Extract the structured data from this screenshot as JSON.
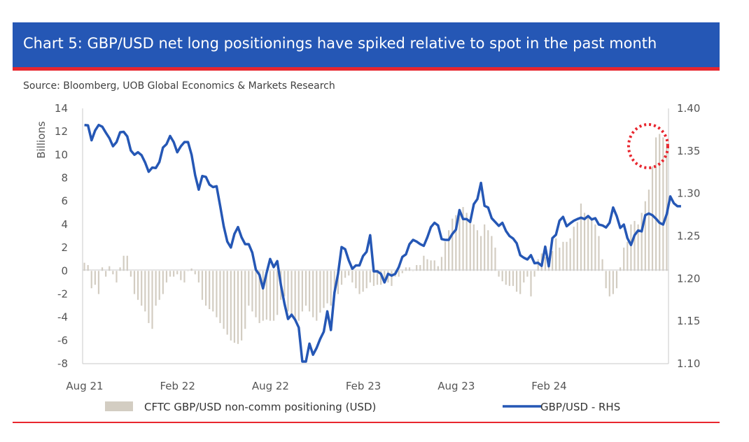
{
  "header": {
    "title": "Chart 5: GBP/USD net long positionings have spiked relative to spot in the past month",
    "source": "Source: Bloomberg, UOB Global Economics & Markets Research"
  },
  "colors": {
    "title_bar": "#2557b5",
    "accent_rule": "#e8262e",
    "bars": "#d3cdc2",
    "line": "#2557b5",
    "highlight_circle": "#e8262e"
  },
  "chart_data": {
    "type": "bar",
    "left_axis": {
      "label": "Billions",
      "ylim": [
        -8,
        14
      ],
      "ticks": [
        "14",
        "12",
        "10",
        "8",
        "6",
        "4",
        "2",
        "0",
        "-2",
        "-4",
        "-6",
        "-8"
      ]
    },
    "right_axis": {
      "ylim": [
        1.1,
        1.4
      ],
      "ticks": [
        "1.40",
        "1.35",
        "1.30",
        "1.25",
        "1.20",
        "1.15",
        "1.10"
      ]
    },
    "x_axis": {
      "ticks": [
        "Aug 21",
        "Feb 22",
        "Aug 22",
        "Feb 23",
        "Aug 23",
        "Feb 24"
      ],
      "tick_index": [
        0,
        26,
        52,
        78,
        104,
        130
      ]
    },
    "grid": false,
    "legend_position": "bottom",
    "series": [
      {
        "name": "CFTC GBP/USD non-comm positioning (USD)",
        "type": "bar",
        "axis": "left",
        "values": [
          0.7,
          0.5,
          -1.5,
          -1.2,
          -2.0,
          0.3,
          -0.5,
          0.4,
          -0.3,
          -1.0,
          0.3,
          1.3,
          1.3,
          -0.5,
          -2.0,
          -2.5,
          -3.0,
          -3.5,
          -4.5,
          -5.0,
          -3.0,
          -2.5,
          -2.0,
          -1.0,
          -0.5,
          -0.5,
          -0.3,
          -0.8,
          -1.0,
          0.0,
          0.2,
          -0.3,
          -1.0,
          -2.5,
          -3.0,
          -3.3,
          -3.5,
          -4.0,
          -4.5,
          -5.0,
          -5.5,
          -6.0,
          -6.2,
          -6.3,
          -6.0,
          -5.0,
          -3.0,
          -3.5,
          -4.0,
          -4.5,
          -4.3,
          -4.2,
          -4.3,
          -4.3,
          -3.8,
          -2.5,
          -2.2,
          -3.5,
          -4.0,
          -4.2,
          -4.3,
          -3.5,
          -3.0,
          -3.5,
          -4.0,
          -4.3,
          -3.6,
          -3.2,
          -2.8,
          -3.0,
          -2.3,
          -2.0,
          -1.2,
          -0.6,
          -0.4,
          -1.0,
          -1.5,
          -2.0,
          -1.8,
          -1.5,
          -1.0,
          -1.3,
          -1.2,
          -1.2,
          -0.9,
          -1.0,
          -1.3,
          -0.5,
          -0.5,
          -0.2,
          0.3,
          0.3,
          0.0,
          0.5,
          0.5,
          1.3,
          1.0,
          0.9,
          0.9,
          0.4,
          1.2,
          2.5,
          3.5,
          4.5,
          4.8,
          5.0,
          5.5,
          5.0,
          4.5,
          4.0,
          3.5,
          3.0,
          4.0,
          3.5,
          3.0,
          2.0,
          -0.5,
          -0.9,
          -1.2,
          -1.3,
          -1.3,
          -1.8,
          -2.0,
          -1.0,
          -0.5,
          -2.2,
          -0.5,
          1.0,
          1.5,
          1.2,
          1.0,
          1.7,
          2.8,
          2.0,
          2.5,
          2.5,
          2.8,
          3.8,
          4.2,
          5.8,
          5.0,
          4.8,
          4.5,
          4.0,
          3.0,
          1.0,
          -1.5,
          -2.2,
          -2.0,
          -1.5,
          0.3,
          2.0,
          2.5,
          4.0,
          4.3,
          4.0,
          5.0,
          6.0,
          7.0,
          9.0,
          11.5,
          11.8,
          11.5,
          11.0
        ]
      },
      {
        "name": "GBP/USD - RHS",
        "type": "line",
        "axis": "right",
        "values": [
          1.3805,
          1.38,
          1.3625,
          1.374,
          1.3805,
          1.3785,
          1.3715,
          1.365,
          1.3555,
          1.3605,
          1.372,
          1.3725,
          1.367,
          1.3505,
          1.3455,
          1.3485,
          1.345,
          1.3365,
          1.3255,
          1.3305,
          1.33,
          1.337,
          1.354,
          1.358,
          1.3675,
          1.3605,
          1.3485,
          1.3555,
          1.3605,
          1.3605,
          1.3455,
          1.3215,
          1.3045,
          1.3205,
          1.3195,
          1.3105,
          1.3075,
          1.3085,
          1.2855,
          1.2615,
          1.2435,
          1.2365,
          1.2525,
          1.2605,
          1.2485,
          1.2405,
          1.2405,
          1.2305,
          1.2105,
          1.2045,
          1.1885,
          1.2065,
          1.223,
          1.2135,
          1.2205,
          1.1925,
          1.1705,
          1.1525,
          1.1575,
          1.1515,
          1.1425,
          1.1025,
          1.1025,
          1.1235,
          1.1105,
          1.1185,
          1.129,
          1.1375,
          1.1615,
          1.1395,
          1.1835,
          1.2055,
          1.237,
          1.2345,
          1.2215,
          1.2115,
          1.2155,
          1.2155,
          1.2265,
          1.2315,
          1.251,
          1.2085,
          1.2085,
          1.2055,
          1.1955,
          1.2055,
          1.2035,
          1.2055,
          1.2135,
          1.2255,
          1.2285,
          1.2405,
          1.2455,
          1.2435,
          1.2405,
          1.2385,
          1.2485,
          1.2605,
          1.2655,
          1.2625,
          1.2465,
          1.2455,
          1.2455,
          1.2525,
          1.2575,
          1.2805,
          1.27,
          1.27,
          1.2665,
          1.2875,
          1.2935,
          1.3125,
          1.2855,
          1.2835,
          1.271,
          1.2665,
          1.262,
          1.2655,
          1.256,
          1.25,
          1.247,
          1.2415,
          1.2275,
          1.2245,
          1.2225,
          1.2275,
          1.218,
          1.2185,
          1.215,
          1.2375,
          1.2145,
          1.2475,
          1.2515,
          1.268,
          1.2725,
          1.2615,
          1.265,
          1.268,
          1.27,
          1.2715,
          1.27,
          1.2735,
          1.2695,
          1.271,
          1.2635,
          1.2625,
          1.26,
          1.2655,
          1.2835,
          1.2735,
          1.2595,
          1.2635,
          1.2475,
          1.2395,
          1.251,
          1.2565,
          1.2555,
          1.2745,
          1.2765,
          1.2745,
          1.2705,
          1.2655,
          1.2635,
          1.2755,
          1.2965,
          1.2885,
          1.285,
          1.285
        ]
      }
    ],
    "annotations": [
      {
        "type": "dotted-circle",
        "note": "highlights the recent spike in net long positioning"
      }
    ]
  }
}
